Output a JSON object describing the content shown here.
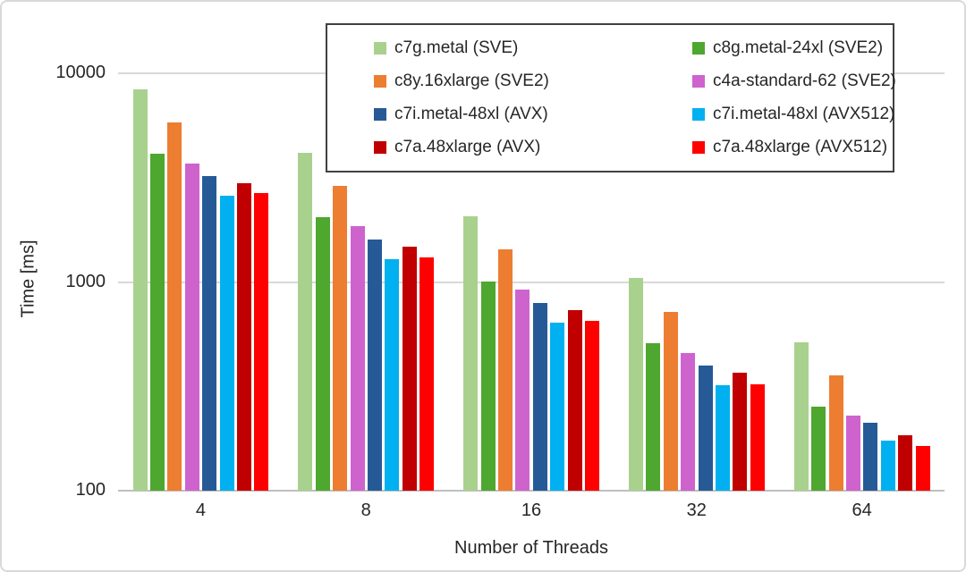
{
  "chart_data": {
    "type": "bar",
    "title": "",
    "xlabel": "Number of Threads",
    "ylabel": "Time [ms]",
    "y_scale": "log",
    "ylim": [
      100,
      10000
    ],
    "y_ticks": [
      100,
      1000,
      10000
    ],
    "categories": [
      "4",
      "8",
      "16",
      "32",
      "64"
    ],
    "series": [
      {
        "name": "c7g.metal (SVE)",
        "color": "#A9D18E",
        "values": [
          8400,
          4170,
          2060,
          1050,
          515
        ]
      },
      {
        "name": "c8g.metal-24xl (SVE2)",
        "color": "#4EA72E",
        "values": [
          4130,
          2050,
          1010,
          508,
          252
        ]
      },
      {
        "name": "c8y.16xlarge (SVE2)",
        "color": "#ED7D31",
        "values": [
          5820,
          2900,
          1440,
          718,
          358
        ]
      },
      {
        "name": "c4a-standard-62 (SVE2)",
        "color": "#CE63CE",
        "values": [
          3715,
          1860,
          920,
          456,
          228
        ]
      },
      {
        "name": "c7i.metal-48xl (AVX)",
        "color": "#255A96",
        "values": [
          3230,
          1600,
          794,
          398,
          211
        ]
      },
      {
        "name": "c7i.metal-48xl (AVX512)",
        "color": "#00B0F0",
        "values": [
          2590,
          1290,
          638,
          320,
          173
        ]
      },
      {
        "name": "c7a.48xlarge (AVX)",
        "color": "#C00000",
        "values": [
          2990,
          1480,
          736,
          368,
          184
        ]
      },
      {
        "name": "c7a.48xlarge (AVX512)",
        "color": "#FF0000",
        "values": [
          2670,
          1310,
          654,
          325,
          164
        ]
      }
    ],
    "legend_position": "top-center",
    "legend_columns": 2,
    "grid": true,
    "colors": {
      "gridline": "#d9d9d9",
      "axis_line": "#bfbfbf",
      "text": "#262626",
      "legend_border": "#404040",
      "frame_border": "#d9d9d9"
    }
  }
}
